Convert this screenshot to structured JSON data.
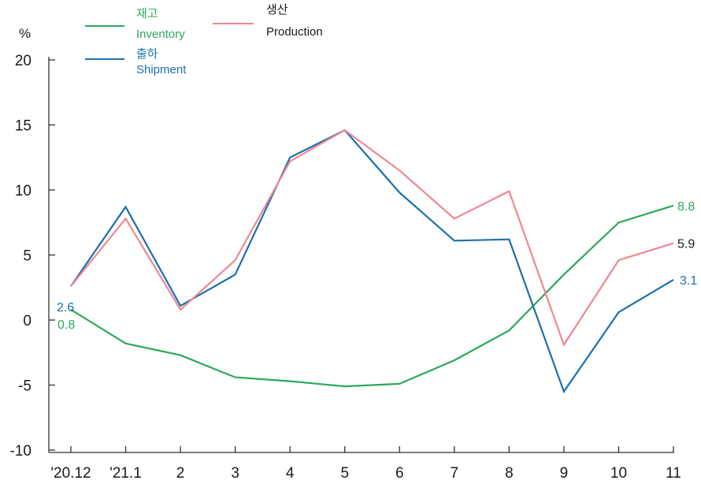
{
  "chart_data": {
    "type": "line",
    "y_unit": "%",
    "categories": [
      "'20.12",
      "'21.1",
      "2",
      "3",
      "4",
      "5",
      "6",
      "7",
      "8",
      "9",
      "10",
      "11"
    ],
    "ylim": [
      -10,
      20
    ],
    "yticks": [
      -10,
      -5,
      0,
      5,
      10,
      15,
      20
    ],
    "grid": false,
    "legend_placement": "top-left",
    "series": [
      {
        "key": "inventory",
        "name_ko": "재고",
        "name_en": "Inventory",
        "color": "#2aa85c",
        "values": [
          0.8,
          -1.8,
          -2.7,
          -4.4,
          -4.7,
          -5.1,
          -4.9,
          -3.1,
          -0.8,
          3.5,
          7.5,
          8.8
        ]
      },
      {
        "key": "shipment",
        "name_ko": "출하",
        "name_en": "Shipment",
        "color": "#1b6fae",
        "values": [
          2.6,
          8.7,
          1.1,
          3.5,
          12.5,
          14.6,
          9.8,
          6.1,
          6.2,
          -5.5,
          0.6,
          3.1
        ]
      },
      {
        "key": "production",
        "name_ko": "생산",
        "name_en": "Production",
        "color": "#f08792",
        "values": [
          2.6,
          7.8,
          0.8,
          4.6,
          12.2,
          14.6,
          11.5,
          7.8,
          9.9,
          -1.9,
          4.6,
          5.9
        ]
      }
    ],
    "annotations": {
      "first_shipment": "2.6",
      "first_inventory": "0.8",
      "last_inventory": "8.8",
      "last_production": "5.9",
      "last_shipment": "3.1"
    },
    "annotation_colors": {
      "last_production": "#1a1a1a"
    }
  }
}
